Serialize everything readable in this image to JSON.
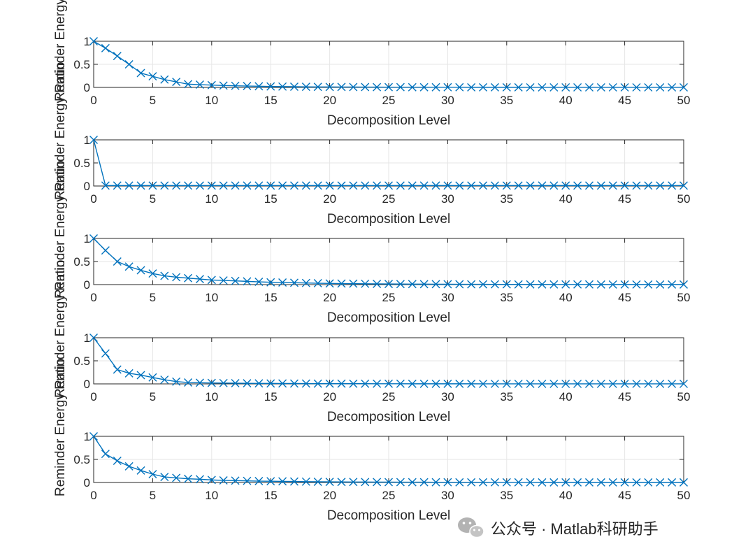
{
  "watermark": {
    "text": "公众号 · Matlab科研助手",
    "icon": "wechat-icon",
    "color": "#9a9a9a"
  },
  "style": {
    "series_color": "#0072BD",
    "grid_color": "#e6e6e6",
    "axis_color": "#262626",
    "marker": "x",
    "grid": true
  },
  "chart_data": [
    {
      "type": "line",
      "xlabel": "Decomposition Level",
      "ylabel": "Reminder Energy Ra",
      "xlim": [
        0,
        50
      ],
      "ylim": [
        0,
        1
      ],
      "xticks": [
        0,
        5,
        10,
        15,
        20,
        25,
        30,
        35,
        40,
        45,
        50
      ],
      "yticks": [
        0,
        0.5,
        1
      ],
      "ytick_labels": [
        "0",
        "0.5",
        "1"
      ],
      "x": [
        0,
        1,
        2,
        3,
        4,
        5,
        6,
        7,
        8,
        9,
        10,
        11,
        12,
        13,
        14,
        15,
        16,
        17,
        18,
        19,
        20,
        21,
        22,
        23,
        24,
        25,
        26,
        27,
        28,
        29,
        30,
        31,
        32,
        33,
        34,
        35,
        36,
        37,
        38,
        39,
        40,
        41,
        42,
        43,
        44,
        45,
        46,
        47,
        48,
        49,
        50
      ],
      "series": [
        {
          "values": [
            1,
            0.85,
            0.68,
            0.5,
            0.31,
            0.24,
            0.17,
            0.12,
            0.07,
            0.06,
            0.05,
            0.04,
            0.035,
            0.03,
            0.025,
            0.02,
            0.018,
            0.015,
            0.013,
            0.011,
            0.01,
            0.009,
            0.008,
            0.007,
            0.006,
            0.005,
            0.005,
            0.004,
            0.004,
            0.003,
            0.003,
            0.003,
            0.002,
            0.002,
            0.002,
            0.002,
            0.002,
            0.001,
            0.001,
            0.001,
            0.001,
            0.001,
            0.001,
            0.001,
            0.001,
            0.001,
            0.001,
            0.001,
            0.001,
            0.001,
            0.001
          ]
        }
      ]
    },
    {
      "type": "line",
      "xlabel": "Decomposition Level",
      "ylabel": "Reminder Energy Ratio",
      "xlim": [
        0,
        50
      ],
      "ylim": [
        0,
        1
      ],
      "xticks": [
        0,
        5,
        10,
        15,
        20,
        25,
        30,
        35,
        40,
        45,
        50
      ],
      "yticks": [
        0,
        0.5,
        1
      ],
      "ytick_labels": [
        "0",
        "0.5",
        "1"
      ],
      "x": [
        0,
        1,
        2,
        3,
        4,
        5,
        6,
        7,
        8,
        9,
        10,
        11,
        12,
        13,
        14,
        15,
        16,
        17,
        18,
        19,
        20,
        21,
        22,
        23,
        24,
        25,
        26,
        27,
        28,
        29,
        30,
        31,
        32,
        33,
        34,
        35,
        36,
        37,
        38,
        39,
        40,
        41,
        42,
        43,
        44,
        45,
        46,
        47,
        48,
        49,
        50
      ],
      "series": [
        {
          "values": [
            1,
            0.01,
            0.01,
            0.01,
            0.01,
            0.01,
            0.01,
            0.01,
            0.01,
            0.01,
            0.01,
            0.01,
            0.01,
            0.01,
            0.01,
            0.01,
            0.01,
            0.01,
            0.01,
            0.01,
            0.01,
            0.01,
            0.01,
            0.01,
            0.01,
            0.01,
            0.01,
            0.01,
            0.01,
            0.01,
            0.01,
            0.01,
            0.01,
            0.01,
            0.01,
            0.01,
            0.01,
            0.01,
            0.01,
            0.01,
            0.01,
            0.01,
            0.01,
            0.01,
            0.01,
            0.01,
            0.01,
            0.01,
            0.01,
            0.01,
            0.01
          ]
        }
      ]
    },
    {
      "type": "line",
      "xlabel": "Decomposition Level",
      "ylabel": "Reminder Energy Ratio",
      "xlim": [
        0,
        50
      ],
      "ylim": [
        0,
        1
      ],
      "xticks": [
        0,
        5,
        10,
        15,
        20,
        25,
        30,
        35,
        40,
        45,
        50
      ],
      "yticks": [
        0,
        0.5,
        1
      ],
      "ytick_labels": [
        "0",
        "0.5",
        "1"
      ],
      "x": [
        0,
        1,
        2,
        3,
        4,
        5,
        6,
        7,
        8,
        9,
        10,
        11,
        12,
        13,
        14,
        15,
        16,
        17,
        18,
        19,
        20,
        21,
        22,
        23,
        24,
        25,
        26,
        27,
        28,
        29,
        30,
        31,
        32,
        33,
        34,
        35,
        36,
        37,
        38,
        39,
        40,
        41,
        42,
        43,
        44,
        45,
        46,
        47,
        48,
        49,
        50
      ],
      "series": [
        {
          "values": [
            1,
            0.74,
            0.5,
            0.39,
            0.31,
            0.24,
            0.19,
            0.16,
            0.14,
            0.12,
            0.1,
            0.09,
            0.08,
            0.07,
            0.06,
            0.05,
            0.045,
            0.04,
            0.035,
            0.03,
            0.025,
            0.022,
            0.02,
            0.018,
            0.016,
            0.014,
            0.012,
            0.011,
            0.01,
            0.009,
            0.008,
            0.007,
            0.006,
            0.006,
            0.005,
            0.005,
            0.004,
            0.004,
            0.004,
            0.003,
            0.003,
            0.003,
            0.003,
            0.002,
            0.002,
            0.002,
            0.002,
            0.002,
            0.002,
            0.002,
            0.002
          ]
        }
      ]
    },
    {
      "type": "line",
      "xlabel": "Decomposition Level",
      "ylabel": "Reminder Energy Ratio",
      "xlim": [
        0,
        50
      ],
      "ylim": [
        0,
        1
      ],
      "xticks": [
        0,
        5,
        10,
        15,
        20,
        25,
        30,
        35,
        40,
        45,
        50
      ],
      "yticks": [
        0,
        0.5,
        1
      ],
      "ytick_labels": [
        "0",
        "0.5",
        "1"
      ],
      "x": [
        0,
        1,
        2,
        3,
        4,
        5,
        6,
        7,
        8,
        9,
        10,
        11,
        12,
        13,
        14,
        15,
        16,
        17,
        18,
        19,
        20,
        21,
        22,
        23,
        24,
        25,
        26,
        27,
        28,
        29,
        30,
        31,
        32,
        33,
        34,
        35,
        36,
        37,
        38,
        39,
        40,
        41,
        42,
        43,
        44,
        45,
        46,
        47,
        48,
        49,
        50
      ],
      "series": [
        {
          "values": [
            1,
            0.66,
            0.31,
            0.23,
            0.19,
            0.14,
            0.09,
            0.05,
            0.03,
            0.025,
            0.02,
            0.018,
            0.015,
            0.013,
            0.011,
            0.01,
            0.009,
            0.008,
            0.007,
            0.006,
            0.005,
            0.005,
            0.004,
            0.004,
            0.003,
            0.003,
            0.003,
            0.002,
            0.002,
            0.002,
            0.002,
            0.002,
            0.002,
            0.001,
            0.001,
            0.001,
            0.001,
            0.001,
            0.001,
            0.001,
            0.001,
            0.001,
            0.001,
            0.001,
            0.001,
            0.001,
            0.001,
            0.001,
            0.001,
            0.001,
            0.001
          ]
        }
      ]
    },
    {
      "type": "line",
      "xlabel": "Decomposition Level",
      "ylabel": "Reminder Energy Ratio",
      "xlim": [
        0,
        50
      ],
      "ylim": [
        0,
        1
      ],
      "xticks": [
        0,
        5,
        10,
        15,
        20,
        25,
        30,
        35,
        40,
        45,
        50
      ],
      "yticks": [
        0,
        0.5,
        1
      ],
      "ytick_labels": [
        "0",
        "0.5",
        "1"
      ],
      "x": [
        0,
        1,
        2,
        3,
        4,
        5,
        6,
        7,
        8,
        9,
        10,
        11,
        12,
        13,
        14,
        15,
        16,
        17,
        18,
        19,
        20,
        21,
        22,
        23,
        24,
        25,
        26,
        27,
        28,
        29,
        30,
        31,
        32,
        33,
        34,
        35,
        36,
        37,
        38,
        39,
        40,
        41,
        42,
        43,
        44,
        45,
        46,
        47,
        48,
        49,
        50
      ],
      "series": [
        {
          "values": [
            1,
            0.62,
            0.47,
            0.35,
            0.26,
            0.18,
            0.12,
            0.1,
            0.08,
            0.07,
            0.055,
            0.045,
            0.04,
            0.035,
            0.03,
            0.027,
            0.024,
            0.021,
            0.018,
            0.016,
            0.014,
            0.012,
            0.011,
            0.01,
            0.009,
            0.008,
            0.007,
            0.006,
            0.006,
            0.005,
            0.005,
            0.004,
            0.004,
            0.004,
            0.003,
            0.003,
            0.003,
            0.003,
            0.002,
            0.002,
            0.002,
            0.002,
            0.002,
            0.002,
            0.002,
            0.002,
            0.002,
            0.002,
            0.002,
            0.002,
            0.002
          ]
        }
      ]
    }
  ]
}
